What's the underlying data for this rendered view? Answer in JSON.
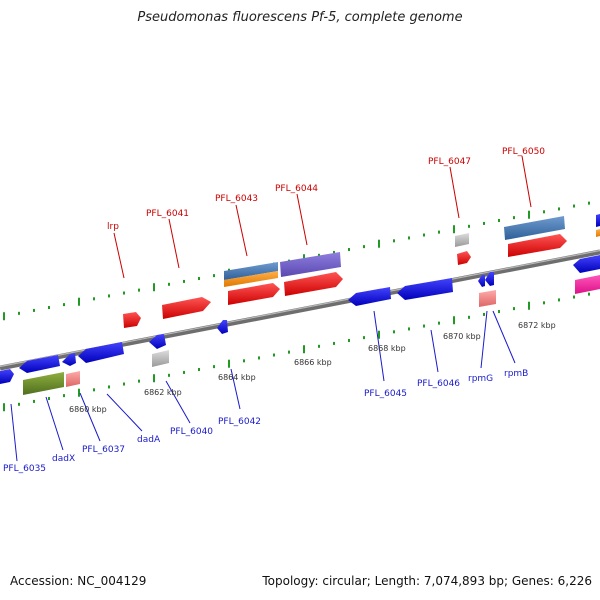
{
  "title": "Pseudomonas fluorescens Pf-5, complete genome",
  "footer": {
    "accession": "Accession: NC_004129",
    "summary": "Topology: circular; Length: 7,074,893 bp; Genes: 6,226"
  },
  "colors": {
    "forward_gene": "#ee1111",
    "reverse_gene": "#1111ee",
    "backbone": "#888888",
    "tick": "#229922",
    "label_forward": "#cc0000",
    "label_reverse": "#1a1acc"
  },
  "ruler_labels": [
    "6860 kbp",
    "6862 kbp",
    "6864 kbp",
    "6866 kbp",
    "6868 kbp",
    "6870 kbp",
    "6872 kbp"
  ],
  "forward_labels": [
    "lrp",
    "PFL_6041",
    "PFL_6043",
    "PFL_6044",
    "PFL_6047",
    "PFL_6050"
  ],
  "reverse_labels": [
    "PFL_6035",
    "dadX",
    "PFL_6037",
    "dadA",
    "PFL_6040",
    "PFL_6042",
    "PFL_6045",
    "PFL_6046",
    "rpmG",
    "rpmB"
  ]
}
